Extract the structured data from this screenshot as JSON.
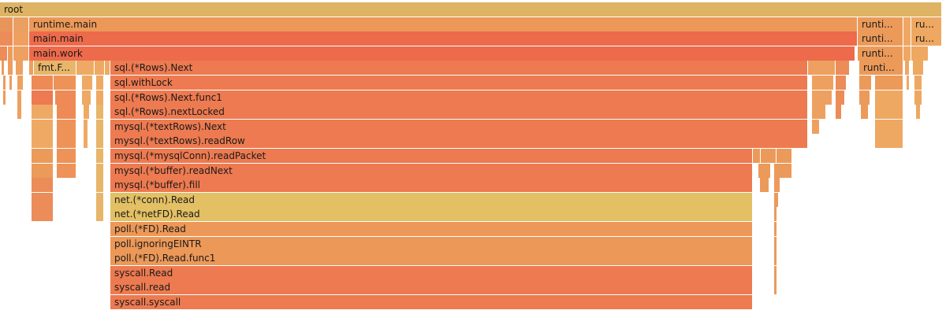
{
  "chart_data": {
    "type": "flamegraph",
    "title": "",
    "frames": [
      {
        "label": "root",
        "depth": 0,
        "start": 0,
        "end": 1195,
        "color": "#deb464"
      },
      {
        "label": "",
        "depth": 1,
        "start": 0,
        "end": 17,
        "color": "#e8955a"
      },
      {
        "label": "",
        "depth": 1,
        "start": 17,
        "end": 37,
        "color": "#eaa060"
      },
      {
        "label": "runtime.main",
        "depth": 1,
        "start": 37,
        "end": 1088,
        "color": "#ec9858"
      },
      {
        "label": "runti...",
        "depth": 1,
        "start": 1088,
        "end": 1146,
        "color": "#ec9a5a"
      },
      {
        "label": "",
        "depth": 1,
        "start": 1146,
        "end": 1156,
        "color": "#eea862"
      },
      {
        "label": "ru...",
        "depth": 1,
        "start": 1156,
        "end": 1195,
        "color": "#eea862"
      },
      {
        "label": "",
        "depth": 2,
        "start": 0,
        "end": 17,
        "color": "#ec8c58"
      },
      {
        "label": "",
        "depth": 2,
        "start": 17,
        "end": 37,
        "color": "#eea060"
      },
      {
        "label": "main.main",
        "depth": 2,
        "start": 37,
        "end": 1088,
        "color": "#ed6a4b"
      },
      {
        "label": "runti...",
        "depth": 2,
        "start": 1088,
        "end": 1146,
        "color": "#ec9a5a"
      },
      {
        "label": "",
        "depth": 2,
        "start": 1146,
        "end": 1156,
        "color": "#eea862"
      },
      {
        "label": "ru...",
        "depth": 2,
        "start": 1156,
        "end": 1195,
        "color": "#eea862"
      },
      {
        "label": "",
        "depth": 3,
        "start": 0,
        "end": 10,
        "color": "#ec8c58"
      },
      {
        "label": "",
        "depth": 3,
        "start": 10,
        "end": 17,
        "color": "#ee9c5e"
      },
      {
        "label": "",
        "depth": 3,
        "start": 17,
        "end": 37,
        "color": "#eea060"
      },
      {
        "label": "main.work",
        "depth": 3,
        "start": 37,
        "end": 1085,
        "color": "#ed6a4b"
      },
      {
        "label": "runti...",
        "depth": 3,
        "start": 1088,
        "end": 1146,
        "color": "#ec9a5a"
      },
      {
        "label": "",
        "depth": 3,
        "start": 1146,
        "end": 1156,
        "color": "#eea862"
      },
      {
        "label": "",
        "depth": 3,
        "start": 1156,
        "end": 1178,
        "color": "#eea862"
      },
      {
        "label": "",
        "depth": 4,
        "start": 2,
        "end": 6,
        "color": "#ee9a5c"
      },
      {
        "label": "",
        "depth": 4,
        "start": 10,
        "end": 17,
        "color": "#ee9c5e"
      },
      {
        "label": "",
        "depth": 4,
        "start": 20,
        "end": 30,
        "color": "#eea060"
      },
      {
        "label": "",
        "depth": 4,
        "start": 37,
        "end": 43,
        "color": "#eca060"
      },
      {
        "label": "fmt.F...",
        "depth": 4,
        "start": 43,
        "end": 97,
        "color": "#e8b66a"
      },
      {
        "label": "",
        "depth": 4,
        "start": 97,
        "end": 120,
        "color": "#eeaa64"
      },
      {
        "label": "",
        "depth": 4,
        "start": 120,
        "end": 133,
        "color": "#eeaa64"
      },
      {
        "label": "",
        "depth": 4,
        "start": 133,
        "end": 140,
        "color": "#eeaa64"
      },
      {
        "label": "sql.(*Rows).Next",
        "depth": 4,
        "start": 140,
        "end": 1025,
        "color": "#ed7a50"
      },
      {
        "label": "",
        "depth": 4,
        "start": 1025,
        "end": 1060,
        "color": "#eea060"
      },
      {
        "label": "",
        "depth": 4,
        "start": 1060,
        "end": 1078,
        "color": "#ec8c58"
      },
      {
        "label": "runti...",
        "depth": 4,
        "start": 1090,
        "end": 1146,
        "color": "#ec9a5a"
      },
      {
        "label": "",
        "depth": 4,
        "start": 1148,
        "end": 1154,
        "color": "#eea862"
      },
      {
        "label": "",
        "depth": 4,
        "start": 1158,
        "end": 1172,
        "color": "#eea862"
      },
      {
        "label": "",
        "depth": 5,
        "start": 4,
        "end": 8,
        "color": "#ee9a5c"
      },
      {
        "label": "",
        "depth": 5,
        "start": 12,
        "end": 16,
        "color": "#ee9c5e"
      },
      {
        "label": "",
        "depth": 5,
        "start": 22,
        "end": 30,
        "color": "#eea060"
      },
      {
        "label": "",
        "depth": 5,
        "start": 40,
        "end": 68,
        "color": "#ee8a56"
      },
      {
        "label": "",
        "depth": 5,
        "start": 68,
        "end": 97,
        "color": "#ee9258"
      },
      {
        "label": "",
        "depth": 5,
        "start": 104,
        "end": 118,
        "color": "#eeaa64"
      },
      {
        "label": "",
        "depth": 5,
        "start": 122,
        "end": 132,
        "color": "#eeaa64"
      },
      {
        "label": "sql.withLock",
        "depth": 5,
        "start": 140,
        "end": 1025,
        "color": "#ed7a50"
      },
      {
        "label": "",
        "depth": 5,
        "start": 1030,
        "end": 1058,
        "color": "#eea060"
      },
      {
        "label": "",
        "depth": 5,
        "start": 1060,
        "end": 1074,
        "color": "#ec8c58"
      },
      {
        "label": "",
        "depth": 5,
        "start": 1090,
        "end": 1106,
        "color": "#ec9a5a"
      },
      {
        "label": "",
        "depth": 5,
        "start": 1110,
        "end": 1146,
        "color": "#ec9a5a"
      },
      {
        "label": "",
        "depth": 5,
        "start": 1150,
        "end": 1154,
        "color": "#eea862"
      },
      {
        "label": "",
        "depth": 5,
        "start": 1160,
        "end": 1170,
        "color": "#eea862"
      },
      {
        "label": "",
        "depth": 6,
        "start": 4,
        "end": 8,
        "color": "#ee9a5c"
      },
      {
        "label": "",
        "depth": 6,
        "start": 22,
        "end": 28,
        "color": "#eea060"
      },
      {
        "label": "",
        "depth": 6,
        "start": 40,
        "end": 68,
        "color": "#ed7a50"
      },
      {
        "label": "",
        "depth": 6,
        "start": 70,
        "end": 97,
        "color": "#ee8a56"
      },
      {
        "label": "",
        "depth": 6,
        "start": 104,
        "end": 116,
        "color": "#eeaa64"
      },
      {
        "label": "",
        "depth": 6,
        "start": 122,
        "end": 132,
        "color": "#eeaa64"
      },
      {
        "label": "sql.(*Rows).Next.func1",
        "depth": 6,
        "start": 140,
        "end": 1025,
        "color": "#ed7a50"
      },
      {
        "label": "",
        "depth": 6,
        "start": 1030,
        "end": 1056,
        "color": "#eea060"
      },
      {
        "label": "",
        "depth": 6,
        "start": 1060,
        "end": 1072,
        "color": "#ec8c58"
      },
      {
        "label": "",
        "depth": 6,
        "start": 1090,
        "end": 1104,
        "color": "#ec9a5a"
      },
      {
        "label": "",
        "depth": 6,
        "start": 1110,
        "end": 1146,
        "color": "#eea862"
      },
      {
        "label": "",
        "depth": 6,
        "start": 1160,
        "end": 1170,
        "color": "#eea862"
      },
      {
        "label": "",
        "depth": 7,
        "start": 22,
        "end": 28,
        "color": "#eea060"
      },
      {
        "label": "",
        "depth": 7,
        "start": 40,
        "end": 68,
        "color": "#eeaa64"
      },
      {
        "label": "",
        "depth": 7,
        "start": 72,
        "end": 97,
        "color": "#ee8a56"
      },
      {
        "label": "",
        "depth": 7,
        "start": 106,
        "end": 114,
        "color": "#eeaa64"
      },
      {
        "label": "",
        "depth": 7,
        "start": 122,
        "end": 132,
        "color": "#e8b66a"
      },
      {
        "label": "sql.(*Rows).nextLocked",
        "depth": 7,
        "start": 140,
        "end": 1025,
        "color": "#ed7a50"
      },
      {
        "label": "",
        "depth": 7,
        "start": 1030,
        "end": 1048,
        "color": "#eea060"
      },
      {
        "label": "",
        "depth": 7,
        "start": 1060,
        "end": 1068,
        "color": "#ec8c58"
      },
      {
        "label": "",
        "depth": 7,
        "start": 1092,
        "end": 1102,
        "color": "#ec9a5a"
      },
      {
        "label": "",
        "depth": 7,
        "start": 1110,
        "end": 1146,
        "color": "#eea862"
      },
      {
        "label": "",
        "depth": 7,
        "start": 1162,
        "end": 1168,
        "color": "#eea862"
      },
      {
        "label": "",
        "depth": 8,
        "start": 40,
        "end": 68,
        "color": "#eeaa64"
      },
      {
        "label": "",
        "depth": 8,
        "start": 72,
        "end": 97,
        "color": "#ee9258"
      },
      {
        "label": "",
        "depth": 8,
        "start": 106,
        "end": 112,
        "color": "#eeaa64"
      },
      {
        "label": "",
        "depth": 8,
        "start": 122,
        "end": 132,
        "color": "#e8b66a"
      },
      {
        "label": "mysql.(*textRows).Next",
        "depth": 8,
        "start": 140,
        "end": 1025,
        "color": "#ed7a50"
      },
      {
        "label": "",
        "depth": 8,
        "start": 1030,
        "end": 1040,
        "color": "#eea060"
      },
      {
        "label": "",
        "depth": 8,
        "start": 1110,
        "end": 1146,
        "color": "#eea862"
      },
      {
        "label": "",
        "depth": 9,
        "start": 40,
        "end": 68,
        "color": "#eeaa64"
      },
      {
        "label": "",
        "depth": 9,
        "start": 72,
        "end": 97,
        "color": "#ee9258"
      },
      {
        "label": "",
        "depth": 9,
        "start": 106,
        "end": 112,
        "color": "#eeaa64"
      },
      {
        "label": "",
        "depth": 9,
        "start": 122,
        "end": 132,
        "color": "#e8b66a"
      },
      {
        "label": "mysql.(*textRows).readRow",
        "depth": 9,
        "start": 140,
        "end": 1025,
        "color": "#ed7a50"
      },
      {
        "label": "",
        "depth": 9,
        "start": 1110,
        "end": 1146,
        "color": "#eea862"
      },
      {
        "label": "",
        "depth": 10,
        "start": 40,
        "end": 68,
        "color": "#ec9a5a"
      },
      {
        "label": "",
        "depth": 10,
        "start": 72,
        "end": 97,
        "color": "#ee9258"
      },
      {
        "label": "",
        "depth": 10,
        "start": 122,
        "end": 132,
        "color": "#e8b66a"
      },
      {
        "label": "mysql.(*mysqlConn).readPacket",
        "depth": 10,
        "start": 140,
        "end": 955,
        "color": "#ed7a50"
      },
      {
        "label": "",
        "depth": 10,
        "start": 955,
        "end": 965,
        "color": "#ec9a5a"
      },
      {
        "label": "",
        "depth": 10,
        "start": 965,
        "end": 985,
        "color": "#ec9a5a"
      },
      {
        "label": "",
        "depth": 10,
        "start": 985,
        "end": 1005,
        "color": "#ec9a5a"
      },
      {
        "label": "",
        "depth": 11,
        "start": 40,
        "end": 68,
        "color": "#ec9a5a"
      },
      {
        "label": "",
        "depth": 11,
        "start": 72,
        "end": 97,
        "color": "#ee9258"
      },
      {
        "label": "",
        "depth": 11,
        "start": 122,
        "end": 132,
        "color": "#e8b66a"
      },
      {
        "label": "mysql.(*buffer).readNext",
        "depth": 11,
        "start": 140,
        "end": 955,
        "color": "#ed7a50"
      },
      {
        "label": "",
        "depth": 11,
        "start": 962,
        "end": 978,
        "color": "#ec9a5a"
      },
      {
        "label": "",
        "depth": 11,
        "start": 982,
        "end": 1005,
        "color": "#ec9a5a"
      },
      {
        "label": "",
        "depth": 12,
        "start": 40,
        "end": 68,
        "color": "#ec8c58"
      },
      {
        "label": "",
        "depth": 12,
        "start": 122,
        "end": 132,
        "color": "#e8b66a"
      },
      {
        "label": "mysql.(*buffer).fill",
        "depth": 12,
        "start": 140,
        "end": 955,
        "color": "#ed7a50"
      },
      {
        "label": "",
        "depth": 12,
        "start": 964,
        "end": 976,
        "color": "#ec9a5a"
      },
      {
        "label": "",
        "depth": 12,
        "start": 982,
        "end": 990,
        "color": "#ec9a5a"
      },
      {
        "label": "",
        "depth": 13,
        "start": 40,
        "end": 68,
        "color": "#ec8c58"
      },
      {
        "label": "",
        "depth": 13,
        "start": 122,
        "end": 132,
        "color": "#e8b66a"
      },
      {
        "label": "net.(*conn).Read",
        "depth": 13,
        "start": 140,
        "end": 955,
        "color": "#e3c064"
      },
      {
        "label": "",
        "depth": 13,
        "start": 982,
        "end": 988,
        "color": "#ec9a5a"
      },
      {
        "label": "",
        "depth": 14,
        "start": 40,
        "end": 68,
        "color": "#ec8c58"
      },
      {
        "label": "",
        "depth": 14,
        "start": 122,
        "end": 132,
        "color": "#e8b66a"
      },
      {
        "label": "net.(*netFD).Read",
        "depth": 14,
        "start": 140,
        "end": 955,
        "color": "#e3c064"
      },
      {
        "label": "",
        "depth": 14,
        "start": 982,
        "end": 986,
        "color": "#ec9a5a"
      },
      {
        "label": "poll.(*FD).Read",
        "depth": 15,
        "start": 140,
        "end": 955,
        "color": "#ec9858"
      },
      {
        "label": "",
        "depth": 15,
        "start": 982,
        "end": 986,
        "color": "#ec9a5a"
      },
      {
        "label": "poll.ignoringEINTR",
        "depth": 16,
        "start": 140,
        "end": 955,
        "color": "#ec9858"
      },
      {
        "label": "",
        "depth": 16,
        "start": 982,
        "end": 986,
        "color": "#ec9a5a"
      },
      {
        "label": "poll.(*FD).Read.func1",
        "depth": 17,
        "start": 140,
        "end": 955,
        "color": "#ec9858"
      },
      {
        "label": "",
        "depth": 17,
        "start": 982,
        "end": 986,
        "color": "#ec9a5a"
      },
      {
        "label": "syscall.Read",
        "depth": 18,
        "start": 140,
        "end": 955,
        "color": "#ed7a50"
      },
      {
        "label": "",
        "depth": 18,
        "start": 982,
        "end": 986,
        "color": "#ec9a5a"
      },
      {
        "label": "syscall.read",
        "depth": 19,
        "start": 140,
        "end": 955,
        "color": "#ed7a50"
      },
      {
        "label": "",
        "depth": 19,
        "start": 982,
        "end": 986,
        "color": "#ec9a5a"
      },
      {
        "label": "syscall.syscall",
        "depth": 20,
        "start": 140,
        "end": 955,
        "color": "#ed7a50"
      }
    ]
  }
}
